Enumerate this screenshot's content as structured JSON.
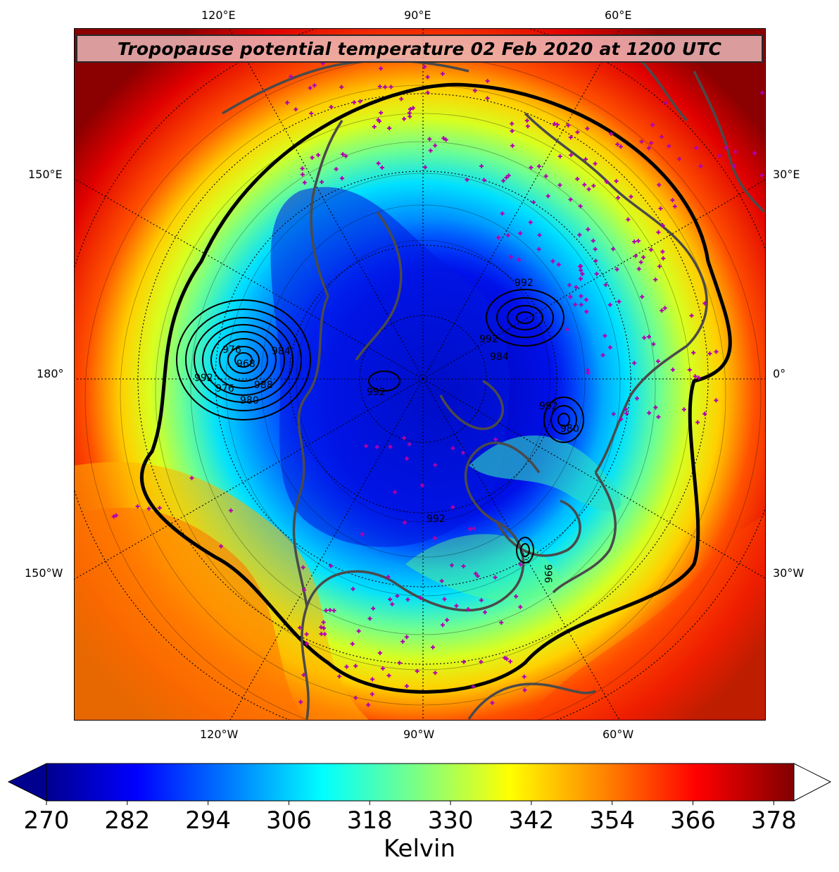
{
  "title": "Tropopause potential temperature 02 Feb 2020 at 1200 UTC",
  "axis_labels": {
    "top": [
      "120°E",
      "90°E",
      "60°E"
    ],
    "bottom": [
      "120°W",
      "90°W",
      "60°W"
    ],
    "left": [
      "150°E",
      "180°",
      "150°W"
    ],
    "right": [
      "30°E",
      "0°",
      "30°W"
    ]
  },
  "colorbar": {
    "label": "Kelvin",
    "ticks": [
      "270",
      "282",
      "294",
      "306",
      "318",
      "330",
      "342",
      "354",
      "366",
      "378"
    ],
    "min": 270,
    "max": 381,
    "extend": "both",
    "colormap": "jet",
    "colors": [
      "#00008f",
      "#0000ff",
      "#0080ff",
      "#00ffff",
      "#80ff80",
      "#ffff00",
      "#ff8000",
      "#ff0000",
      "#800000"
    ]
  },
  "contour_labels": [
    "992",
    "992",
    "984",
    "976",
    "968",
    "984",
    "980",
    "992",
    "976",
    "988",
    "992",
    "992",
    "980",
    "996",
    "992"
  ],
  "colors": {
    "coastline": "#4a4a4a",
    "station_marker": "#b000b0",
    "contour": "#000000"
  },
  "map": {
    "projection": "north polar stereographic",
    "field": "potential temperature on the tropopause (2 PVU)",
    "overlay": "sea level pressure contours (hPa)",
    "markers": "observation stations (magenta plus)"
  }
}
